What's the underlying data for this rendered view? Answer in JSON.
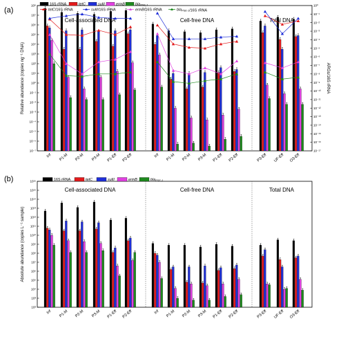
{
  "chart_data": [
    {
      "type": "bar",
      "panel_label": "(a)",
      "categories": [
        "Inf",
        "P1-M",
        "P2-M",
        "P3-M",
        "P1-Eff",
        "P2-Eff",
        "Inf",
        "P1-M",
        "P2-M",
        "P3-M",
        "P1-Eff",
        "P2-Eff",
        "P3-Eff",
        "UF-Eff",
        "O3-Eff"
      ],
      "groups": [
        {
          "label": "Cell-associated DNA",
          "start": 0,
          "end": 5
        },
        {
          "label": "Cell-free DNA",
          "start": 6,
          "end": 11
        },
        {
          "label": "Total DNA",
          "start": 12,
          "end": 14
        }
      ],
      "ylabel": "Relative abundance (copies ng⁻¹ DNA)",
      "ylabel_right": "ARGs/16S rRNA",
      "yscale": "log",
      "ylim_exp": [
        -7,
        8
      ],
      "y2lim_exp": [
        -17,
        0
      ],
      "yticks": [
        "10⁻⁷",
        "10⁻⁶",
        "10⁻⁵",
        "10⁻⁴",
        "10⁻³",
        "10⁻²",
        "10⁻¹",
        "10⁰",
        "10¹",
        "10²",
        "10³",
        "10⁴",
        "10⁵",
        "10⁶",
        "10⁷",
        "10⁸"
      ],
      "y2ticks": [
        "10⁻¹⁷",
        "10⁻¹⁶",
        "10⁻¹⁵",
        "10⁻¹⁴",
        "10⁻¹³",
        "10⁻¹²",
        "10⁻¹¹",
        "10⁻¹⁰",
        "10⁻⁹",
        "10⁻⁸",
        "10⁻⁷",
        "10⁻⁶",
        "10⁻⁵",
        "10⁻⁴",
        "10⁻³",
        "10⁻²",
        "10⁻¹",
        "10⁰"
      ],
      "series": [
        {
          "name": "16S rRNA",
          "color": "#000000",
          "log_values": [
            7.7,
            7.3,
            7.2,
            7.1,
            7.4,
            7.5,
            6.1,
            5.4,
            5.3,
            5.2,
            5.5,
            5.6,
            6.4,
            6.8,
            6.6
          ]
        },
        {
          "name": "tetC",
          "color": "#e31a1c",
          "log_values": [
            5.9,
            3.5,
            3.5,
            4.3,
            3.8,
            5.1,
            4.0,
            0.4,
            -0.6,
            -0.4,
            1.1,
            1.2,
            5.2,
            4.5,
            4.8
          ]
        },
        {
          "name": "sulII",
          "color": "#1f2fd8",
          "log_values": [
            5.7,
            5.4,
            5.5,
            5.3,
            5.4,
            5.5,
            4.9,
            1.0,
            1.0,
            1.1,
            1.6,
            1.4,
            5.9,
            3.5,
            4.9
          ]
        },
        {
          "name": "ermB",
          "color": "#e040e0",
          "log_values": [
            4.4,
            0.6,
            -0.6,
            0.6,
            1.2,
            2.1,
            2.9,
            -2.6,
            -3.6,
            -3.8,
            -3.3,
            -2.7,
            -0.2,
            -1.1,
            -0.6
          ]
        },
        {
          "name": "blaPSE-1",
          "color": "#1e8a1e",
          "log_values": [
            2.0,
            -1.5,
            -1.7,
            -1.7,
            -1.2,
            -0.7,
            -0.4,
            -6.3,
            -6.2,
            -6.5,
            -5.8,
            -5.5,
            -1.6,
            -2.2,
            -2.2
          ]
        }
      ],
      "ratio_series": [
        {
          "name": "tetC/16S rRNA",
          "color": "#e31a1c",
          "marker": "triangle",
          "log_values": [
            -1.6,
            -3.4,
            -3.5,
            -2.9,
            -3.4,
            -2.5,
            -2.3,
            -4.5,
            -4.9,
            -5.0,
            -4.5,
            -4.2,
            -1.2,
            -2.2,
            -1.8
          ]
        },
        {
          "name": "sulII/16S rRNA",
          "color": "#1f2fd8",
          "marker": "triangle",
          "log_values": [
            -1.5,
            -1.2,
            -1.0,
            -1.4,
            -1.5,
            -1.5,
            -0.9,
            -3.9,
            -3.9,
            -3.9,
            -3.7,
            -3.6,
            -0.7,
            -3.3,
            -1.5
          ]
        },
        {
          "name": "ermB/16S rRNA",
          "color": "#e040e0",
          "marker": "triangle",
          "log_values": [
            -3.4,
            -6.8,
            -8.0,
            -6.6,
            -6.3,
            -5.4,
            -3.3,
            -7.6,
            -8.0,
            -7.3,
            -8.0,
            -6.5,
            -6.7,
            -7.3,
            -6.6
          ]
        },
        {
          "name": "blaPSE-1/16S rRNA",
          "color": "#1e8a1e",
          "marker": "triangle",
          "log_values": [
            -5.7,
            -8.2,
            -8.3,
            -8.0,
            -8.0,
            -7.8,
            -6.6,
            -8.9,
            -9.1,
            -8.8,
            -8.6,
            -8.0,
            -7.8,
            -8.6,
            -8.4
          ]
        }
      ]
    },
    {
      "type": "bar",
      "panel_label": "(b)",
      "categories": [
        "Inf",
        "P1-M",
        "P2-M",
        "P3-M",
        "P1-Eff",
        "P2-Eff",
        "Inf",
        "P1-M",
        "P2-M",
        "P3-M",
        "P1-Eff",
        "P2-Eff",
        "P3-Eff",
        "UF-Eff",
        "O3-Eff"
      ],
      "groups": [
        {
          "label": "Cell-associated DNA",
          "start": 0,
          "end": 5
        },
        {
          "label": "Cell-free DNA",
          "start": 6,
          "end": 11
        },
        {
          "label": "Total DNA",
          "start": 12,
          "end": 14
        }
      ],
      "ylabel": "Absolute abundance (copies L⁻¹ sample)",
      "yscale": "log",
      "ylim_exp": [
        2,
        16
      ],
      "yticks": [
        "10²",
        "10³",
        "10⁴",
        "10⁵",
        "10⁶",
        "10⁷",
        "10⁸",
        "10⁹",
        "10¹⁰",
        "10¹¹",
        "10¹²",
        "10¹³",
        "10¹⁴",
        "10¹⁵",
        "10¹⁶"
      ],
      "series": [
        {
          "name": "16S rRNA",
          "color": "#000000",
          "log_values": [
            12.7,
            13.6,
            13.1,
            13.7,
            11.7,
            11.9,
            9.1,
            8.9,
            8.9,
            8.7,
            9.0,
            8.8,
            8.9,
            9.5,
            9.4
          ]
        },
        {
          "name": "tetC",
          "color": "#e31a1c",
          "log_values": [
            10.8,
            10.5,
            10.5,
            10.7,
            8.1,
            9.4,
            8.0,
            6.2,
            4.8,
            4.7,
            6.1,
            6.3,
            7.7,
            7.3,
            7.5
          ]
        },
        {
          "name": "sulII",
          "color": "#1f2fd8",
          "log_values": [
            10.6,
            11.6,
            11.5,
            11.4,
            8.6,
            9.7,
            7.8,
            6.5,
            6.5,
            6.6,
            6.4,
            6.7,
            8.4,
            6.5,
            7.7
          ]
        },
        {
          "name": "ermB",
          "color": "#e040e0",
          "log_values": [
            10.0,
            9.4,
            9.3,
            9.1,
            6.6,
            7.2,
            7.0,
            4.1,
            4.6,
            4.4,
            4.6,
            5.1,
            4.6,
            4.0,
            5.1
          ]
        },
        {
          "name": "blaPSE-1",
          "color": "#1e8a1e",
          "log_values": [
            8.9,
            8.1,
            8.1,
            8.3,
            5.5,
            8.1,
            5.2,
            3.0,
            2.8,
            2.8,
            3.2,
            3.4,
            4.5,
            4.1,
            3.9
          ]
        }
      ]
    }
  ],
  "legend_a": {
    "row1": [
      {
        "label": "16S rRNA",
        "color": "#000000"
      },
      {
        "label": "tetC",
        "color": "#e31a1c"
      },
      {
        "label": "sulII",
        "color": "#1f2fd8"
      },
      {
        "label": "ermB",
        "color": "#e040e0"
      },
      {
        "label": "blaPSE-1",
        "color": "#1e8a1e"
      }
    ],
    "row2": [
      {
        "label": "tetC/16S rRNA",
        "color": "#e31a1c"
      },
      {
        "label": "sulII/16S rRNA",
        "color": "#1f2fd8"
      },
      {
        "label": "ermB/16S rRNA",
        "color": "#e040e0"
      },
      {
        "label": "blaPSE-1/16S rRNA",
        "color": "#1e8a1e"
      }
    ]
  },
  "legend_b": [
    {
      "label": "16S rRNA",
      "color": "#000000"
    },
    {
      "label": "tetC",
      "color": "#e31a1c"
    },
    {
      "label": "sulII",
      "color": "#1f2fd8"
    },
    {
      "label": "ermB",
      "color": "#e040e0"
    },
    {
      "label": "blaPSE-1",
      "color": "#1e8a1e"
    }
  ]
}
